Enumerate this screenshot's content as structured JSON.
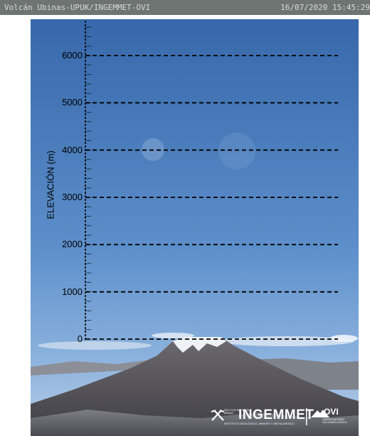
{
  "header": {
    "title": "Volcán Ubinas-UPUK/INGEMMET-OVI",
    "timestamp": "16/07/2020 15:45:29"
  },
  "chart_data": {
    "type": "elevation-scale",
    "ylabel": "ELEVACIÓN (m)",
    "ticks": [
      {
        "value": 0,
        "label": "0"
      },
      {
        "value": 1000,
        "label": "1000"
      },
      {
        "value": 2000,
        "label": "2000"
      },
      {
        "value": 3000,
        "label": "3000"
      },
      {
        "value": 4000,
        "label": "4000"
      },
      {
        "value": 5000,
        "label": "5000"
      },
      {
        "value": 6000,
        "label": "6000"
      }
    ],
    "grid": true
  },
  "logos": {
    "ingemmet": "INGEMMET",
    "ingemmet_top": "SECTOR ENERGÍA Y MINAS",
    "ingemmet_bottom": "INSTITUTO GEOLÓGICO, MINERO Y METALÚRGICO",
    "ovi": "OVI",
    "ovi_sub": "OBSERVATORIO VULCANOLÓGICO"
  },
  "colors": {
    "sky_top": "#3a6fb0",
    "sky_bottom": "#9bbfe3",
    "volcano": "#5b5b60",
    "topbar": "#6e7472"
  }
}
